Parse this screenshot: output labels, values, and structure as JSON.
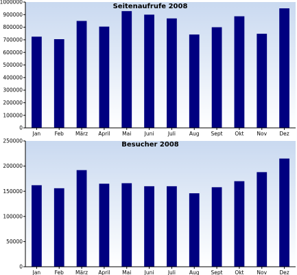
{
  "colors": {
    "bar": "#000080",
    "bg_top": "#c9d9f0",
    "bg_bottom": "#ffffff",
    "axis": "#000000",
    "grid": "#9aa9bf"
  },
  "chart_data": [
    {
      "type": "bar",
      "title": "Seitenaufrufe 2008",
      "categories": [
        "Jan",
        "Feb",
        "März",
        "April",
        "Mai",
        "Juni",
        "Juli",
        "Aug",
        "Sept",
        "Okt",
        "Nov",
        "Dez"
      ],
      "values": [
        725000,
        705000,
        850000,
        805000,
        928000,
        900000,
        870000,
        742000,
        800000,
        887000,
        748000,
        950000
      ],
      "ylim": [
        0,
        1000000
      ],
      "yticks": [
        "0",
        "100000",
        "200000",
        "300000",
        "400000",
        "500000",
        "600000",
        "700000",
        "800000",
        "900000",
        "1000000"
      ],
      "grid": false,
      "xlabel": "",
      "ylabel": ""
    },
    {
      "type": "bar",
      "title": "Besucher 2008",
      "categories": [
        "Jan",
        "Feb",
        "März",
        "April",
        "Mai",
        "Juni",
        "Juli",
        "Aug",
        "Sept",
        "Okt",
        "Nov",
        "Dez"
      ],
      "values": [
        162000,
        156000,
        192000,
        165000,
        166000,
        160000,
        160000,
        146000,
        158000,
        170000,
        188000,
        215000
      ],
      "ylim": [
        0,
        250000
      ],
      "yticks": [
        "0",
        "50000",
        "100000",
        "150000",
        "200000",
        "250000"
      ],
      "grid": false,
      "xlabel": "",
      "ylabel": ""
    }
  ]
}
